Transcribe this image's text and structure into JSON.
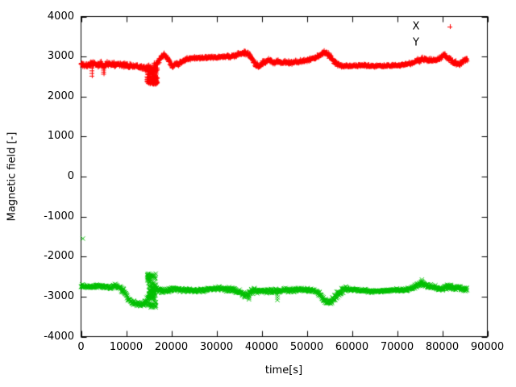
{
  "figure": {
    "background": "#ffffff",
    "frame_color": "#000000",
    "text_color": "#000000"
  },
  "chart_data": {
    "type": "scatter",
    "title": "",
    "xlabel": "time[s]",
    "ylabel": "Magnetic field [-]",
    "xlim": [
      0,
      90000
    ],
    "ylim": [
      -4000,
      4000
    ],
    "xticks": [
      0,
      10000,
      20000,
      30000,
      40000,
      50000,
      60000,
      70000,
      80000,
      90000
    ],
    "yticks": [
      -4000,
      -3000,
      -2000,
      -1000,
      0,
      1000,
      2000,
      3000,
      4000
    ],
    "grid": false,
    "legend": {
      "position": "top-right",
      "entries": [
        {
          "label": "X",
          "marker": "+",
          "color": "#ff0000",
          "sample_visible": true
        },
        {
          "label": "Y",
          "marker": "x",
          "color": "#00bf00",
          "sample_visible": false
        }
      ]
    },
    "series": [
      {
        "name": "X",
        "marker": "plus",
        "color": "#ff0000",
        "seed": 11,
        "t_step": 60,
        "t_end": 85500,
        "band_keypoints": [
          [
            0,
            2810,
            100
          ],
          [
            2000,
            2790,
            100
          ],
          [
            4000,
            2770,
            100
          ],
          [
            6000,
            2770,
            95
          ],
          [
            8000,
            2800,
            85
          ],
          [
            10000,
            2810,
            80
          ],
          [
            12000,
            2800,
            80
          ],
          [
            13500,
            2770,
            90
          ],
          [
            14500,
            2730,
            110
          ],
          [
            15500,
            2710,
            120
          ],
          [
            16300,
            2760,
            120
          ],
          [
            17000,
            2850,
            110
          ],
          [
            18300,
            3040,
            85
          ],
          [
            19300,
            2900,
            85
          ],
          [
            20200,
            2750,
            85
          ],
          [
            21500,
            2800,
            80
          ],
          [
            23000,
            2930,
            65
          ],
          [
            25000,
            2985,
            55
          ],
          [
            28000,
            2995,
            55
          ],
          [
            31000,
            2995,
            55
          ],
          [
            33500,
            3005,
            60
          ],
          [
            35200,
            3055,
            75
          ],
          [
            36300,
            3075,
            85
          ],
          [
            37300,
            3000,
            95
          ],
          [
            38400,
            2790,
            95
          ],
          [
            39400,
            2730,
            90
          ],
          [
            40500,
            2840,
            85
          ],
          [
            41500,
            2900,
            80
          ],
          [
            42500,
            2840,
            75
          ],
          [
            43500,
            2880,
            70
          ],
          [
            44500,
            2850,
            70
          ],
          [
            46000,
            2880,
            70
          ],
          [
            47500,
            2860,
            70
          ],
          [
            49000,
            2880,
            65
          ],
          [
            50500,
            2910,
            65
          ],
          [
            52000,
            2960,
            70
          ],
          [
            53500,
            3080,
            75
          ],
          [
            54300,
            3110,
            75
          ],
          [
            55300,
            3030,
            85
          ],
          [
            56300,
            2900,
            90
          ],
          [
            57300,
            2810,
            75
          ],
          [
            58500,
            2790,
            60
          ],
          [
            60000,
            2780,
            50
          ],
          [
            62000,
            2775,
            45
          ],
          [
            64500,
            2775,
            45
          ],
          [
            67000,
            2780,
            45
          ],
          [
            69500,
            2780,
            45
          ],
          [
            71500,
            2790,
            50
          ],
          [
            73000,
            2820,
            60
          ],
          [
            74500,
            2880,
            75
          ],
          [
            76000,
            2900,
            80
          ],
          [
            77500,
            2860,
            80
          ],
          [
            79000,
            2890,
            80
          ],
          [
            80300,
            3010,
            85
          ],
          [
            81500,
            2930,
            85
          ],
          [
            82500,
            2860,
            85
          ],
          [
            83500,
            2830,
            80
          ],
          [
            84400,
            2890,
            80
          ],
          [
            85500,
            2960,
            80
          ]
        ],
        "burst": {
          "t_range": [
            14700,
            16800
          ],
          "v_range": [
            2310,
            2740
          ],
          "count": 150,
          "columns": 10
        },
        "spikes": [
          [
            2400,
            2520
          ],
          [
            5000,
            2570
          ]
        ],
        "outliers": []
      },
      {
        "name": "Y",
        "marker": "cross",
        "color": "#00bf00",
        "seed": 29,
        "t_step": 60,
        "t_end": 85500,
        "band_keypoints": [
          [
            0,
            -2720,
            70
          ],
          [
            2000,
            -2720,
            70
          ],
          [
            4000,
            -2730,
            70
          ],
          [
            6000,
            -2730,
            70
          ],
          [
            7500,
            -2740,
            75
          ],
          [
            8600,
            -2790,
            85
          ],
          [
            9500,
            -2900,
            95
          ],
          [
            10500,
            -3070,
            100
          ],
          [
            11500,
            -3160,
            100
          ],
          [
            12500,
            -3190,
            100
          ],
          [
            13500,
            -3180,
            110
          ],
          [
            14300,
            -3120,
            130
          ],
          [
            15000,
            -3000,
            160
          ],
          [
            15700,
            -2880,
            200
          ],
          [
            16400,
            -2780,
            120
          ],
          [
            17200,
            -2800,
            90
          ],
          [
            18500,
            -2820,
            80
          ],
          [
            20000,
            -2820,
            75
          ],
          [
            22000,
            -2830,
            70
          ],
          [
            24000,
            -2830,
            70
          ],
          [
            26000,
            -2825,
            70
          ],
          [
            28000,
            -2820,
            70
          ],
          [
            30000,
            -2830,
            75
          ],
          [
            32000,
            -2840,
            80
          ],
          [
            34000,
            -2850,
            85
          ],
          [
            35500,
            -2880,
            95
          ],
          [
            36500,
            -2930,
            110
          ],
          [
            37500,
            -2920,
            110
          ],
          [
            38500,
            -2850,
            90
          ],
          [
            40000,
            -2830,
            85
          ],
          [
            41500,
            -2820,
            80
          ],
          [
            43000,
            -2830,
            85
          ],
          [
            44500,
            -2840,
            80
          ],
          [
            46000,
            -2850,
            75
          ],
          [
            48000,
            -2850,
            70
          ],
          [
            50000,
            -2860,
            70
          ],
          [
            51500,
            -2880,
            75
          ],
          [
            52800,
            -2950,
            85
          ],
          [
            53800,
            -3130,
            90
          ],
          [
            54600,
            -3190,
            85
          ],
          [
            55400,
            -3150,
            95
          ],
          [
            56200,
            -3000,
            130
          ],
          [
            57000,
            -2900,
            140
          ],
          [
            58000,
            -2860,
            120
          ],
          [
            59000,
            -2850,
            90
          ],
          [
            60500,
            -2855,
            55
          ],
          [
            62500,
            -2860,
            45
          ],
          [
            64500,
            -2860,
            45
          ],
          [
            66500,
            -2860,
            45
          ],
          [
            68500,
            -2860,
            45
          ],
          [
            70500,
            -2860,
            50
          ],
          [
            72000,
            -2850,
            55
          ],
          [
            73500,
            -2820,
            70
          ],
          [
            75000,
            -2730,
            90
          ],
          [
            76000,
            -2720,
            95
          ],
          [
            77000,
            -2780,
            85
          ],
          [
            78500,
            -2810,
            80
          ],
          [
            80000,
            -2810,
            85
          ],
          [
            81500,
            -2790,
            90
          ],
          [
            83000,
            -2810,
            90
          ],
          [
            84300,
            -2820,
            85
          ],
          [
            85500,
            -2830,
            80
          ]
        ],
        "burst": {
          "t_range": [
            14800,
            16500
          ],
          "v_range": [
            -3270,
            -2410
          ],
          "count": 120,
          "columns": 9
        },
        "spikes": [
          [
            37200,
            -3070
          ],
          [
            43500,
            -3085
          ],
          [
            75500,
            -2575
          ]
        ],
        "outliers": [
          [
            400,
            -1550
          ]
        ]
      }
    ]
  }
}
